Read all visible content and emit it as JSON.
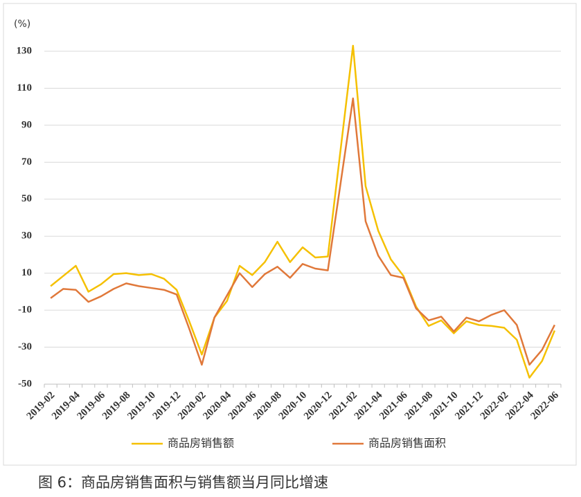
{
  "chart_data": {
    "type": "line",
    "y_label": "(%)",
    "caption": "图 6：商品房销售面积与销售额当月同比增速",
    "categories": [
      "2019-02",
      null,
      "2019-04",
      null,
      "2019-06",
      null,
      "2019-08",
      null,
      "2019-10",
      null,
      "2019-12",
      null,
      "2020-02",
      null,
      "2020-04",
      null,
      "2020-06",
      null,
      "2020-08",
      null,
      "2020-10",
      null,
      "2020-12",
      null,
      "2021-02",
      null,
      "2021-04",
      null,
      "2021-06",
      null,
      "2021-08",
      null,
      "2021-10",
      null,
      "2021-12",
      null,
      "2022-02",
      null,
      "2022-04",
      null,
      "2022-06"
    ],
    "series": [
      {
        "name": "商品房销售额",
        "color": "#f5c000",
        "values": [
          3,
          8.5,
          14,
          0,
          4,
          9.5,
          10,
          9,
          9.5,
          7,
          1,
          -16,
          -34,
          -14,
          -5,
          14,
          9,
          16,
          27,
          16,
          24,
          18.5,
          19,
          76,
          133,
          57,
          33,
          17.5,
          8.5,
          -8,
          -18.5,
          -15.5,
          -22.5,
          -16,
          -18,
          -18.5,
          -19.5,
          -26,
          -46.5,
          -37.5,
          -21
        ]
      },
      {
        "name": "商品房销售面积",
        "color": "#e0783a",
        "values": [
          -3.5,
          1.5,
          1,
          -5.5,
          -2.5,
          1.5,
          4.5,
          3,
          2,
          1,
          -1.5,
          -20,
          -39.5,
          -14,
          -2,
          10,
          2.5,
          9.5,
          13.5,
          7.5,
          15,
          12.5,
          11.5,
          58,
          104.5,
          38,
          19.5,
          9,
          7.5,
          -9,
          -15.5,
          -13.5,
          -21.5,
          -14,
          -16,
          -12.5,
          -10,
          -18,
          -39.5,
          -31.5,
          -18
        ]
      }
    ],
    "ylim": [
      -50,
      140
    ],
    "yticks": [
      -50,
      -30,
      -10,
      10,
      30,
      50,
      70,
      90,
      110,
      130
    ],
    "grid": true
  }
}
